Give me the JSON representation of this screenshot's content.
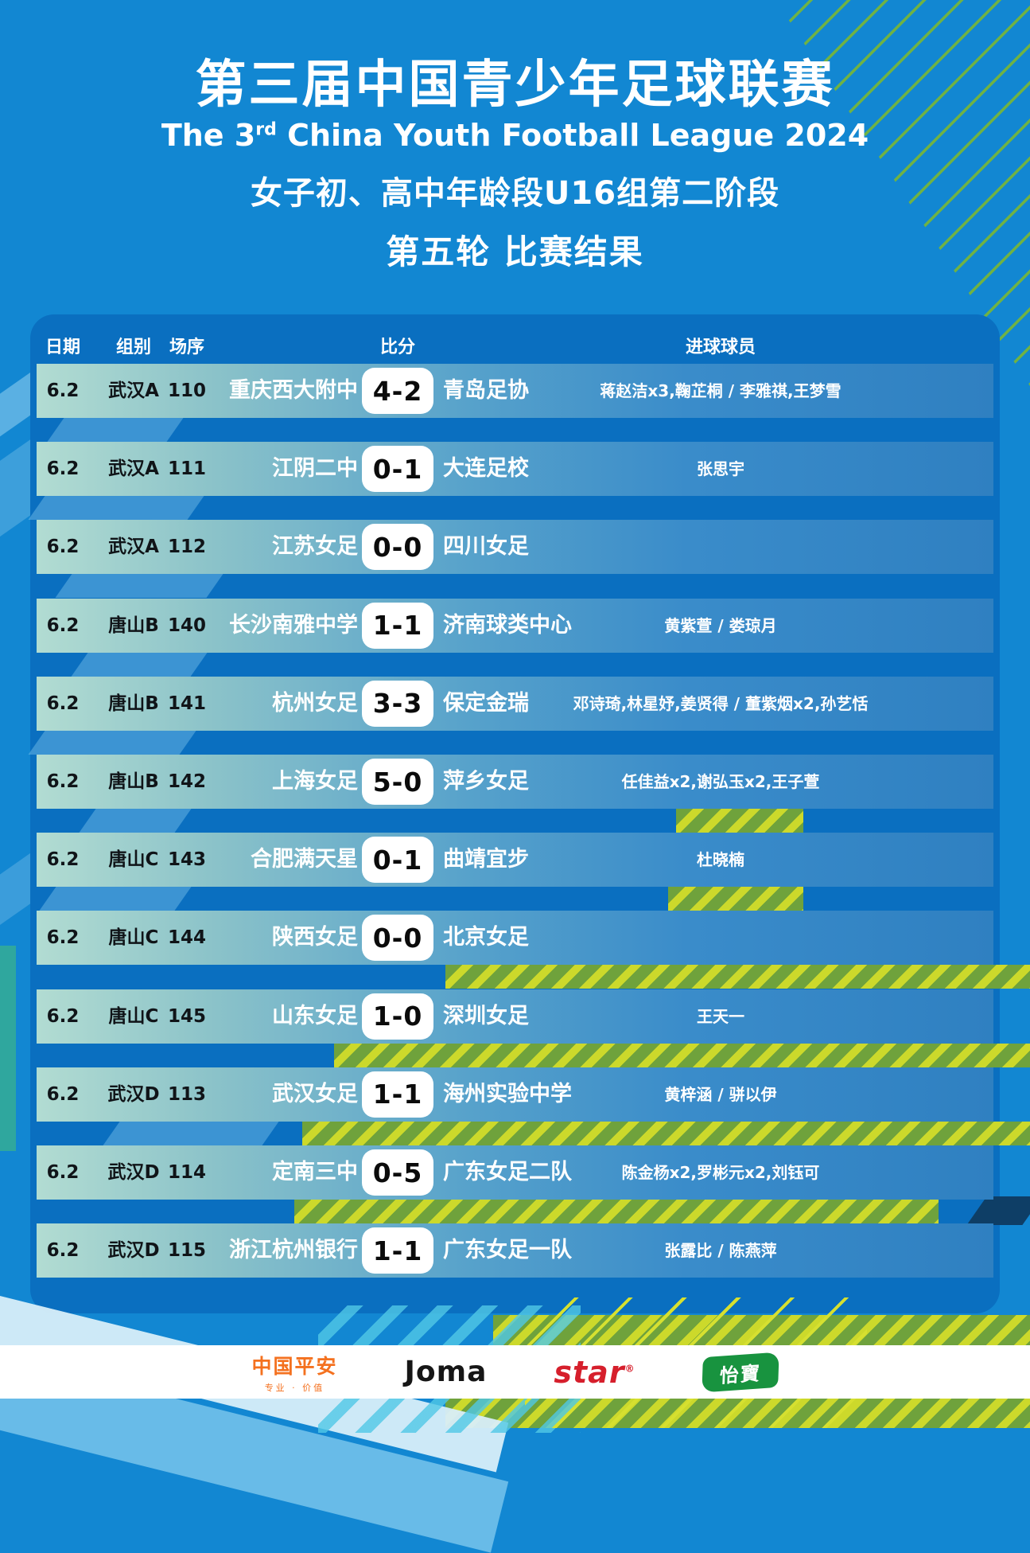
{
  "header": {
    "title_cn": "第三届中国青少年足球联赛",
    "title_en": {
      "pre": "The 3",
      "sup": "rd",
      "post": " China Youth Football League 2024"
    },
    "subtitle": "女子初、高中年龄段U16组第二阶段",
    "round_line": "第五轮 比赛结果"
  },
  "table": {
    "columns": {
      "date": "日期",
      "group": "组别",
      "match_no": "场序",
      "score": "比分",
      "scorers": "进球球员"
    },
    "rows": [
      {
        "date": "6.2",
        "group": "武汉A",
        "match_no": "110",
        "home": "重庆西大附中",
        "score": "4-2",
        "away": "青岛足协",
        "scorers": "蒋赵洁x3,鞠芷桐 / 李雅祺,王梦雪"
      },
      {
        "date": "6.2",
        "group": "武汉A",
        "match_no": "111",
        "home": "江阴二中",
        "score": "0-1",
        "away": "大连足校",
        "scorers": "张思宇"
      },
      {
        "date": "6.2",
        "group": "武汉A",
        "match_no": "112",
        "home": "江苏女足",
        "score": "0-0",
        "away": "四川女足",
        "scorers": ""
      },
      {
        "date": "6.2",
        "group": "唐山B",
        "match_no": "140",
        "home": "长沙南雅中学",
        "score": "1-1",
        "away": "济南球类中心",
        "scorers": "黄紫萱 / 娄琼月"
      },
      {
        "date": "6.2",
        "group": "唐山B",
        "match_no": "141",
        "home": "杭州女足",
        "score": "3-3",
        "away": "保定金瑞",
        "scorers": "邓诗琦,林星妤,姜贤得 / 董紫烟x2,孙艺恬"
      },
      {
        "date": "6.2",
        "group": "唐山B",
        "match_no": "142",
        "home": "上海女足",
        "score": "5-0",
        "away": "萍乡女足",
        "scorers": "任佳益x2,谢弘玉x2,王子萱"
      },
      {
        "date": "6.2",
        "group": "唐山C",
        "match_no": "143",
        "home": "合肥满天星",
        "score": "0-1",
        "away": "曲靖宜步",
        "scorers": "杜晓楠"
      },
      {
        "date": "6.2",
        "group": "唐山C",
        "match_no": "144",
        "home": "陕西女足",
        "score": "0-0",
        "away": "北京女足",
        "scorers": ""
      },
      {
        "date": "6.2",
        "group": "唐山C",
        "match_no": "145",
        "home": "山东女足",
        "score": "1-0",
        "away": "深圳女足",
        "scorers": "王天一"
      },
      {
        "date": "6.2",
        "group": "武汉D",
        "match_no": "113",
        "home": "武汉女足",
        "score": "1-1",
        "away": "海州实验中学",
        "scorers": "黄梓涵 / 骈以伊"
      },
      {
        "date": "6.2",
        "group": "武汉D",
        "match_no": "114",
        "home": "定南三中",
        "score": "0-5",
        "away": "广东女足二队",
        "scorers": "陈金杨x2,罗彬元x2,刘钰可"
      },
      {
        "date": "6.2",
        "group": "武汉D",
        "match_no": "115",
        "home": "浙江杭州银行",
        "score": "1-1",
        "away": "广东女足一队",
        "scorers": "张露比 / 陈燕萍"
      }
    ]
  },
  "footer": {
    "sponsors": [
      {
        "name": "pingan",
        "label": "中国平安",
        "tagline": "专业 · 价值"
      },
      {
        "name": "joma",
        "label": "Joma"
      },
      {
        "name": "star",
        "label": "star",
        "mark": "®"
      },
      {
        "name": "cestbon",
        "label": "怡寶"
      }
    ]
  },
  "colors": {
    "background_blue": "#1287d2",
    "board_blue": "#0a6fc0",
    "row_gradient_left": "#b2dcd2",
    "row_gradient_right": "#2f80c1",
    "stripe_green": "#6fa23c",
    "stripe_yellow": "#ccd92b",
    "line_green": "#6fb244",
    "pingan_orange": "#f4711f",
    "star_red": "#d61f2c",
    "cestbon_green": "#18933f"
  }
}
